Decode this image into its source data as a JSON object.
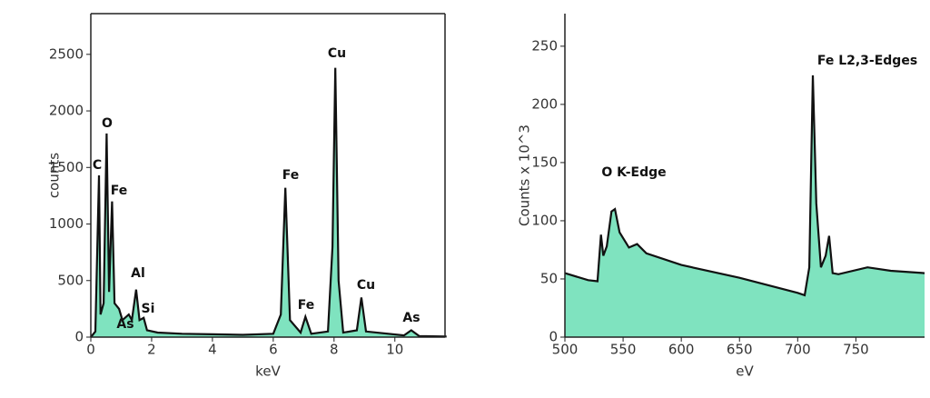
{
  "chart_data": [
    {
      "type": "area",
      "xlabel": "keV",
      "ylabel": "counts",
      "color": "#7fe3bf",
      "line_color": "#111111",
      "frame": true,
      "x": [
        0,
        0.15,
        0.27,
        0.32,
        0.42,
        0.52,
        0.6,
        0.7,
        0.78,
        0.93,
        1.04,
        1.25,
        1.35,
        1.49,
        1.6,
        1.74,
        1.85,
        2.2,
        3,
        4,
        5,
        6.0,
        6.25,
        6.4,
        6.55,
        6.9,
        7.06,
        7.25,
        7.8,
        7.95,
        8.04,
        8.15,
        8.3,
        8.75,
        8.9,
        9.05,
        10.3,
        10.54,
        10.8,
        11.7
      ],
      "values": [
        0,
        50,
        1430,
        200,
        300,
        1800,
        400,
        1200,
        300,
        250,
        150,
        200,
        150,
        420,
        150,
        170,
        60,
        40,
        30,
        25,
        20,
        30,
        200,
        1320,
        150,
        40,
        180,
        30,
        50,
        800,
        2380,
        500,
        40,
        60,
        350,
        50,
        15,
        60,
        10,
        5
      ],
      "xlim": [
        0,
        11.65
      ],
      "ylim": [
        0,
        2860
      ],
      "xticks": [
        0,
        2,
        4,
        6,
        8,
        10
      ],
      "yticks": [
        0,
        500,
        1000,
        1500,
        2000,
        2500
      ],
      "annotations": [
        "C",
        "O",
        "Fe",
        "As",
        "Al",
        "Si",
        "Fe",
        "Fe",
        "Cu",
        "Cu",
        "As"
      ]
    },
    {
      "type": "area",
      "xlabel": "eV",
      "ylabel": "Counts x 10^3",
      "color": "#7fe3bf",
      "line_color": "#111111",
      "frame": false,
      "x": [
        500,
        520,
        528,
        531,
        533,
        536,
        540,
        543,
        547,
        555,
        562,
        570,
        600,
        650,
        700,
        706,
        710,
        713,
        716,
        720,
        724,
        727,
        730,
        735,
        760,
        780,
        809
      ],
      "values": [
        55,
        49,
        48,
        88,
        70,
        78,
        108,
        110,
        90,
        77,
        80,
        72,
        62,
        51,
        38,
        36,
        60,
        225,
        115,
        60,
        70,
        87,
        55,
        54,
        60,
        57,
        55
      ],
      "xlim": [
        500,
        809
      ],
      "ylim": [
        0,
        278
      ],
      "xticks": [
        500,
        550,
        600,
        650,
        700,
        750
      ],
      "yticks": [
        0,
        50,
        100,
        150,
        200,
        250
      ],
      "annotations": [
        "O K-Edge",
        "Fe L2,3-Edges"
      ]
    }
  ]
}
